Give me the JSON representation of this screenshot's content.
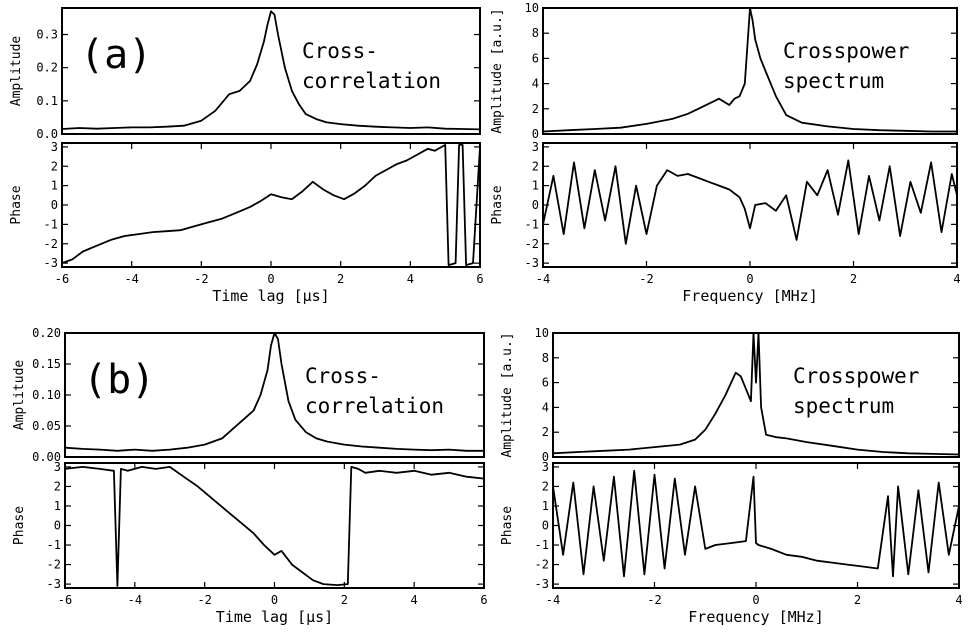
{
  "chart_data": [
    {
      "panel": "a-left-top",
      "type": "line",
      "panel_label": "(a)",
      "annotation": [
        "Cross-",
        "correlation"
      ],
      "ylabel": "Amplitude",
      "xlim": [
        -6,
        6
      ],
      "ylim": [
        0,
        0.38
      ],
      "yticks": [
        0,
        0.1,
        0.2,
        0.3
      ],
      "ytick_labels": [
        "0.0",
        "0.1",
        "0.2",
        "0.3"
      ],
      "series": [
        {
          "x": [
            -6,
            -5.5,
            -5,
            -4.5,
            -4,
            -3.5,
            -3,
            -2.5,
            -2,
            -1.6,
            -1.2,
            -0.9,
            -0.6,
            -0.4,
            -0.2,
            -0.1,
            0,
            0.1,
            0.2,
            0.4,
            0.6,
            0.8,
            1.0,
            1.3,
            1.6,
            2,
            2.5,
            3,
            3.5,
            4,
            4.5,
            5,
            5.5,
            6
          ],
          "y": [
            0.015,
            0.018,
            0.016,
            0.018,
            0.02,
            0.02,
            0.022,
            0.025,
            0.04,
            0.07,
            0.12,
            0.13,
            0.16,
            0.21,
            0.28,
            0.33,
            0.37,
            0.36,
            0.3,
            0.2,
            0.13,
            0.09,
            0.06,
            0.045,
            0.035,
            0.03,
            0.025,
            0.022,
            0.02,
            0.018,
            0.02,
            0.016,
            0.015,
            0.014
          ]
        }
      ]
    },
    {
      "panel": "a-left-bottom",
      "type": "line",
      "ylabel": "Phase",
      "xlabel": "Time lag [µs]",
      "xlim": [
        -6,
        6
      ],
      "ylim": [
        -3.2,
        3.2
      ],
      "xticks": [
        -6,
        -4,
        -2,
        0,
        2,
        4,
        6
      ],
      "yticks": [
        -3,
        -2,
        -1,
        0,
        1,
        2,
        3
      ],
      "series": [
        {
          "x": [
            -6,
            -5.7,
            -5.4,
            -5,
            -4.6,
            -4.2,
            -3.8,
            -3.4,
            -3,
            -2.6,
            -2.2,
            -1.8,
            -1.4,
            -1,
            -0.6,
            -0.3,
            0,
            0.3,
            0.6,
            0.9,
            1.2,
            1.5,
            1.8,
            2.1,
            2.4,
            2.7,
            3.0,
            3.3,
            3.6,
            3.9,
            4.2,
            4.5,
            4.7,
            4.9,
            5.0,
            5.1,
            5.3,
            5.4,
            5.5,
            5.6,
            5.8,
            6
          ],
          "y": [
            -3.0,
            -2.8,
            -2.4,
            -2.1,
            -1.8,
            -1.6,
            -1.5,
            -1.4,
            -1.35,
            -1.3,
            -1.1,
            -0.9,
            -0.7,
            -0.4,
            -0.1,
            0.2,
            0.55,
            0.4,
            0.3,
            0.7,
            1.2,
            0.8,
            0.5,
            0.3,
            0.6,
            1.0,
            1.5,
            1.8,
            2.1,
            2.3,
            2.6,
            2.9,
            2.8,
            3.0,
            3.1,
            -3.1,
            -3.0,
            3.1,
            3.1,
            -3.1,
            -3.0,
            3.0
          ]
        }
      ]
    },
    {
      "panel": "a-right-top",
      "type": "line",
      "annotation": [
        "Crosspower",
        "spectrum"
      ],
      "ylabel": "Amplitude [a.u.]",
      "xlim": [
        -4,
        4
      ],
      "ylim": [
        0,
        10
      ],
      "yticks": [
        0,
        2,
        4,
        6,
        8,
        10
      ],
      "series": [
        {
          "x": [
            -4,
            -3.5,
            -3,
            -2.5,
            -2,
            -1.5,
            -1.2,
            -1.0,
            -0.8,
            -0.6,
            -0.4,
            -0.3,
            -0.2,
            -0.1,
            0,
            0.05,
            0.1,
            0.2,
            0.3,
            0.5,
            0.7,
            1.0,
            1.5,
            2,
            2.5,
            3,
            3.5,
            4
          ],
          "y": [
            0.2,
            0.3,
            0.4,
            0.5,
            0.8,
            1.2,
            1.6,
            2.0,
            2.4,
            2.8,
            2.3,
            2.8,
            3.0,
            4.0,
            10.0,
            9.0,
            7.5,
            6.0,
            5.0,
            3.0,
            1.5,
            0.9,
            0.6,
            0.4,
            0.3,
            0.25,
            0.2,
            0.2
          ]
        }
      ]
    },
    {
      "panel": "a-right-bottom",
      "type": "line",
      "ylabel": "Phase",
      "xlabel": "Frequency [MHz]",
      "xlim": [
        -4,
        4
      ],
      "ylim": [
        -3.2,
        3.2
      ],
      "xticks": [
        -4,
        -2,
        0,
        2,
        4
      ],
      "yticks": [
        -3,
        -2,
        -1,
        0,
        1,
        2,
        3
      ],
      "series": [
        {
          "x": [
            -4,
            -3.8,
            -3.6,
            -3.4,
            -3.2,
            -3.0,
            -2.8,
            -2.6,
            -2.4,
            -2.2,
            -2.0,
            -1.8,
            -1.6,
            -1.4,
            -1.2,
            -1.0,
            -0.8,
            -0.6,
            -0.4,
            -0.2,
            -0.1,
            0,
            0.1,
            0.3,
            0.5,
            0.7,
            0.9,
            1.1,
            1.3,
            1.5,
            1.7,
            1.9,
            2.1,
            2.3,
            2.5,
            2.7,
            2.9,
            3.1,
            3.3,
            3.5,
            3.7,
            3.9,
            4
          ],
          "y": [
            -1.0,
            1.5,
            -1.5,
            2.2,
            -1.2,
            1.8,
            -0.8,
            2.0,
            -2.0,
            1.0,
            -1.5,
            1.0,
            1.8,
            1.5,
            1.6,
            1.4,
            1.2,
            1.0,
            0.8,
            0.4,
            -0.2,
            -1.2,
            0.0,
            0.1,
            -0.3,
            0.5,
            -1.8,
            1.2,
            0.5,
            1.8,
            -0.5,
            2.3,
            -1.5,
            1.5,
            -0.8,
            2.0,
            -1.6,
            1.2,
            -0.4,
            2.2,
            -1.4,
            1.6,
            0.5
          ]
        }
      ]
    },
    {
      "panel": "b-left-top",
      "type": "line",
      "panel_label": "(b)",
      "annotation": [
        "Cross-",
        "correlation"
      ],
      "ylabel": "Amplitude",
      "xlim": [
        -6,
        6
      ],
      "ylim": [
        0,
        0.2
      ],
      "yticks": [
        0,
        0.05,
        0.1,
        0.15,
        0.2
      ],
      "ytick_labels": [
        "0.00",
        "0.05",
        "0.10",
        "0.15",
        "0.20"
      ],
      "series": [
        {
          "x": [
            -6,
            -5.5,
            -5,
            -4.5,
            -4,
            -3.5,
            -3,
            -2.5,
            -2,
            -1.5,
            -1.2,
            -0.9,
            -0.6,
            -0.4,
            -0.2,
            -0.1,
            0,
            0.1,
            0.2,
            0.4,
            0.6,
            0.9,
            1.2,
            1.5,
            2,
            2.5,
            3,
            3.5,
            4,
            4.5,
            5,
            5.5,
            6
          ],
          "y": [
            0.015,
            0.013,
            0.012,
            0.01,
            0.012,
            0.01,
            0.012,
            0.015,
            0.02,
            0.03,
            0.045,
            0.06,
            0.075,
            0.1,
            0.14,
            0.18,
            0.2,
            0.19,
            0.15,
            0.09,
            0.06,
            0.04,
            0.03,
            0.025,
            0.02,
            0.017,
            0.015,
            0.013,
            0.012,
            0.011,
            0.012,
            0.01,
            0.01
          ]
        }
      ]
    },
    {
      "panel": "b-left-bottom",
      "type": "line",
      "ylabel": "Phase",
      "xlabel": "Time lag [µs]",
      "xlim": [
        -6,
        6
      ],
      "ylim": [
        -3.2,
        3.2
      ],
      "xticks": [
        -6,
        -4,
        -2,
        0,
        2,
        4,
        6
      ],
      "yticks": [
        -3,
        -2,
        -1,
        0,
        1,
        2,
        3
      ],
      "series": [
        {
          "x": [
            -6,
            -5.5,
            -5,
            -4.6,
            -4.5,
            -4.4,
            -4.2,
            -3.8,
            -3.4,
            -3,
            -2.6,
            -2.2,
            -1.8,
            -1.4,
            -1.0,
            -0.6,
            -0.3,
            0,
            0.2,
            0.5,
            0.8,
            1.1,
            1.4,
            1.8,
            2.1,
            2.2,
            2.4,
            2.6,
            3,
            3.5,
            4,
            4.5,
            5,
            5.5,
            6
          ],
          "y": [
            2.9,
            3.0,
            2.9,
            2.8,
            -3.1,
            2.9,
            2.8,
            3.0,
            2.9,
            3.0,
            2.5,
            2.0,
            1.4,
            0.8,
            0.2,
            -0.4,
            -1.0,
            -1.5,
            -1.3,
            -2.0,
            -2.4,
            -2.8,
            -3.0,
            -3.05,
            -3.0,
            3.0,
            2.9,
            2.7,
            2.8,
            2.7,
            2.8,
            2.6,
            2.7,
            2.5,
            2.4
          ]
        }
      ]
    },
    {
      "panel": "b-right-top",
      "type": "line",
      "annotation": [
        "Crosspower",
        "spectrum"
      ],
      "ylabel": "Amplitude [a.u.]",
      "xlim": [
        -4,
        4
      ],
      "ylim": [
        0,
        10
      ],
      "yticks": [
        0,
        2,
        4,
        6,
        8,
        10
      ],
      "series": [
        {
          "x": [
            -4,
            -3.5,
            -3,
            -2.5,
            -2,
            -1.5,
            -1.2,
            -1.0,
            -0.8,
            -0.6,
            -0.4,
            -0.3,
            -0.2,
            -0.1,
            -0.05,
            0,
            0.05,
            0.1,
            0.2,
            0.4,
            0.6,
            1.0,
            1.5,
            2,
            2.5,
            3,
            3.5,
            4
          ],
          "y": [
            0.3,
            0.4,
            0.5,
            0.6,
            0.8,
            1.0,
            1.4,
            2.2,
            3.5,
            5.0,
            6.8,
            6.5,
            5.5,
            4.5,
            10.0,
            6.0,
            10.0,
            4.0,
            1.8,
            1.6,
            1.5,
            1.2,
            0.9,
            0.6,
            0.4,
            0.3,
            0.25,
            0.2
          ]
        }
      ]
    },
    {
      "panel": "b-right-bottom",
      "type": "line",
      "ylabel": "Phase",
      "xlabel": "Frequency [MHz]",
      "xlim": [
        -4,
        4
      ],
      "ylim": [
        -3.2,
        3.2
      ],
      "xticks": [
        -4,
        -2,
        0,
        2,
        4
      ],
      "yticks": [
        -3,
        -2,
        -1,
        0,
        1,
        2,
        3
      ],
      "series": [
        {
          "x": [
            -4,
            -3.8,
            -3.6,
            -3.4,
            -3.2,
            -3.0,
            -2.8,
            -2.6,
            -2.4,
            -2.2,
            -2.0,
            -1.8,
            -1.6,
            -1.4,
            -1.2,
            -1.0,
            -0.8,
            -0.5,
            -0.2,
            -0.05,
            0,
            0.05,
            0.3,
            0.6,
            0.9,
            1.2,
            1.5,
            1.8,
            2.1,
            2.4,
            2.6,
            2.7,
            2.8,
            3.0,
            3.2,
            3.4,
            3.6,
            3.8,
            4
          ],
          "y": [
            2.0,
            -1.5,
            2.2,
            -2.5,
            2.0,
            -1.8,
            2.5,
            -2.6,
            2.8,
            -2.5,
            2.6,
            -2.2,
            2.4,
            -1.5,
            2.0,
            -1.2,
            -1.0,
            -0.9,
            -0.8,
            2.5,
            -0.9,
            -1.0,
            -1.2,
            -1.5,
            -1.6,
            -1.8,
            -1.9,
            -2.0,
            -2.1,
            -2.2,
            1.5,
            -2.6,
            2.0,
            -2.5,
            1.8,
            -2.4,
            2.2,
            -1.5,
            1.0
          ]
        }
      ]
    }
  ]
}
